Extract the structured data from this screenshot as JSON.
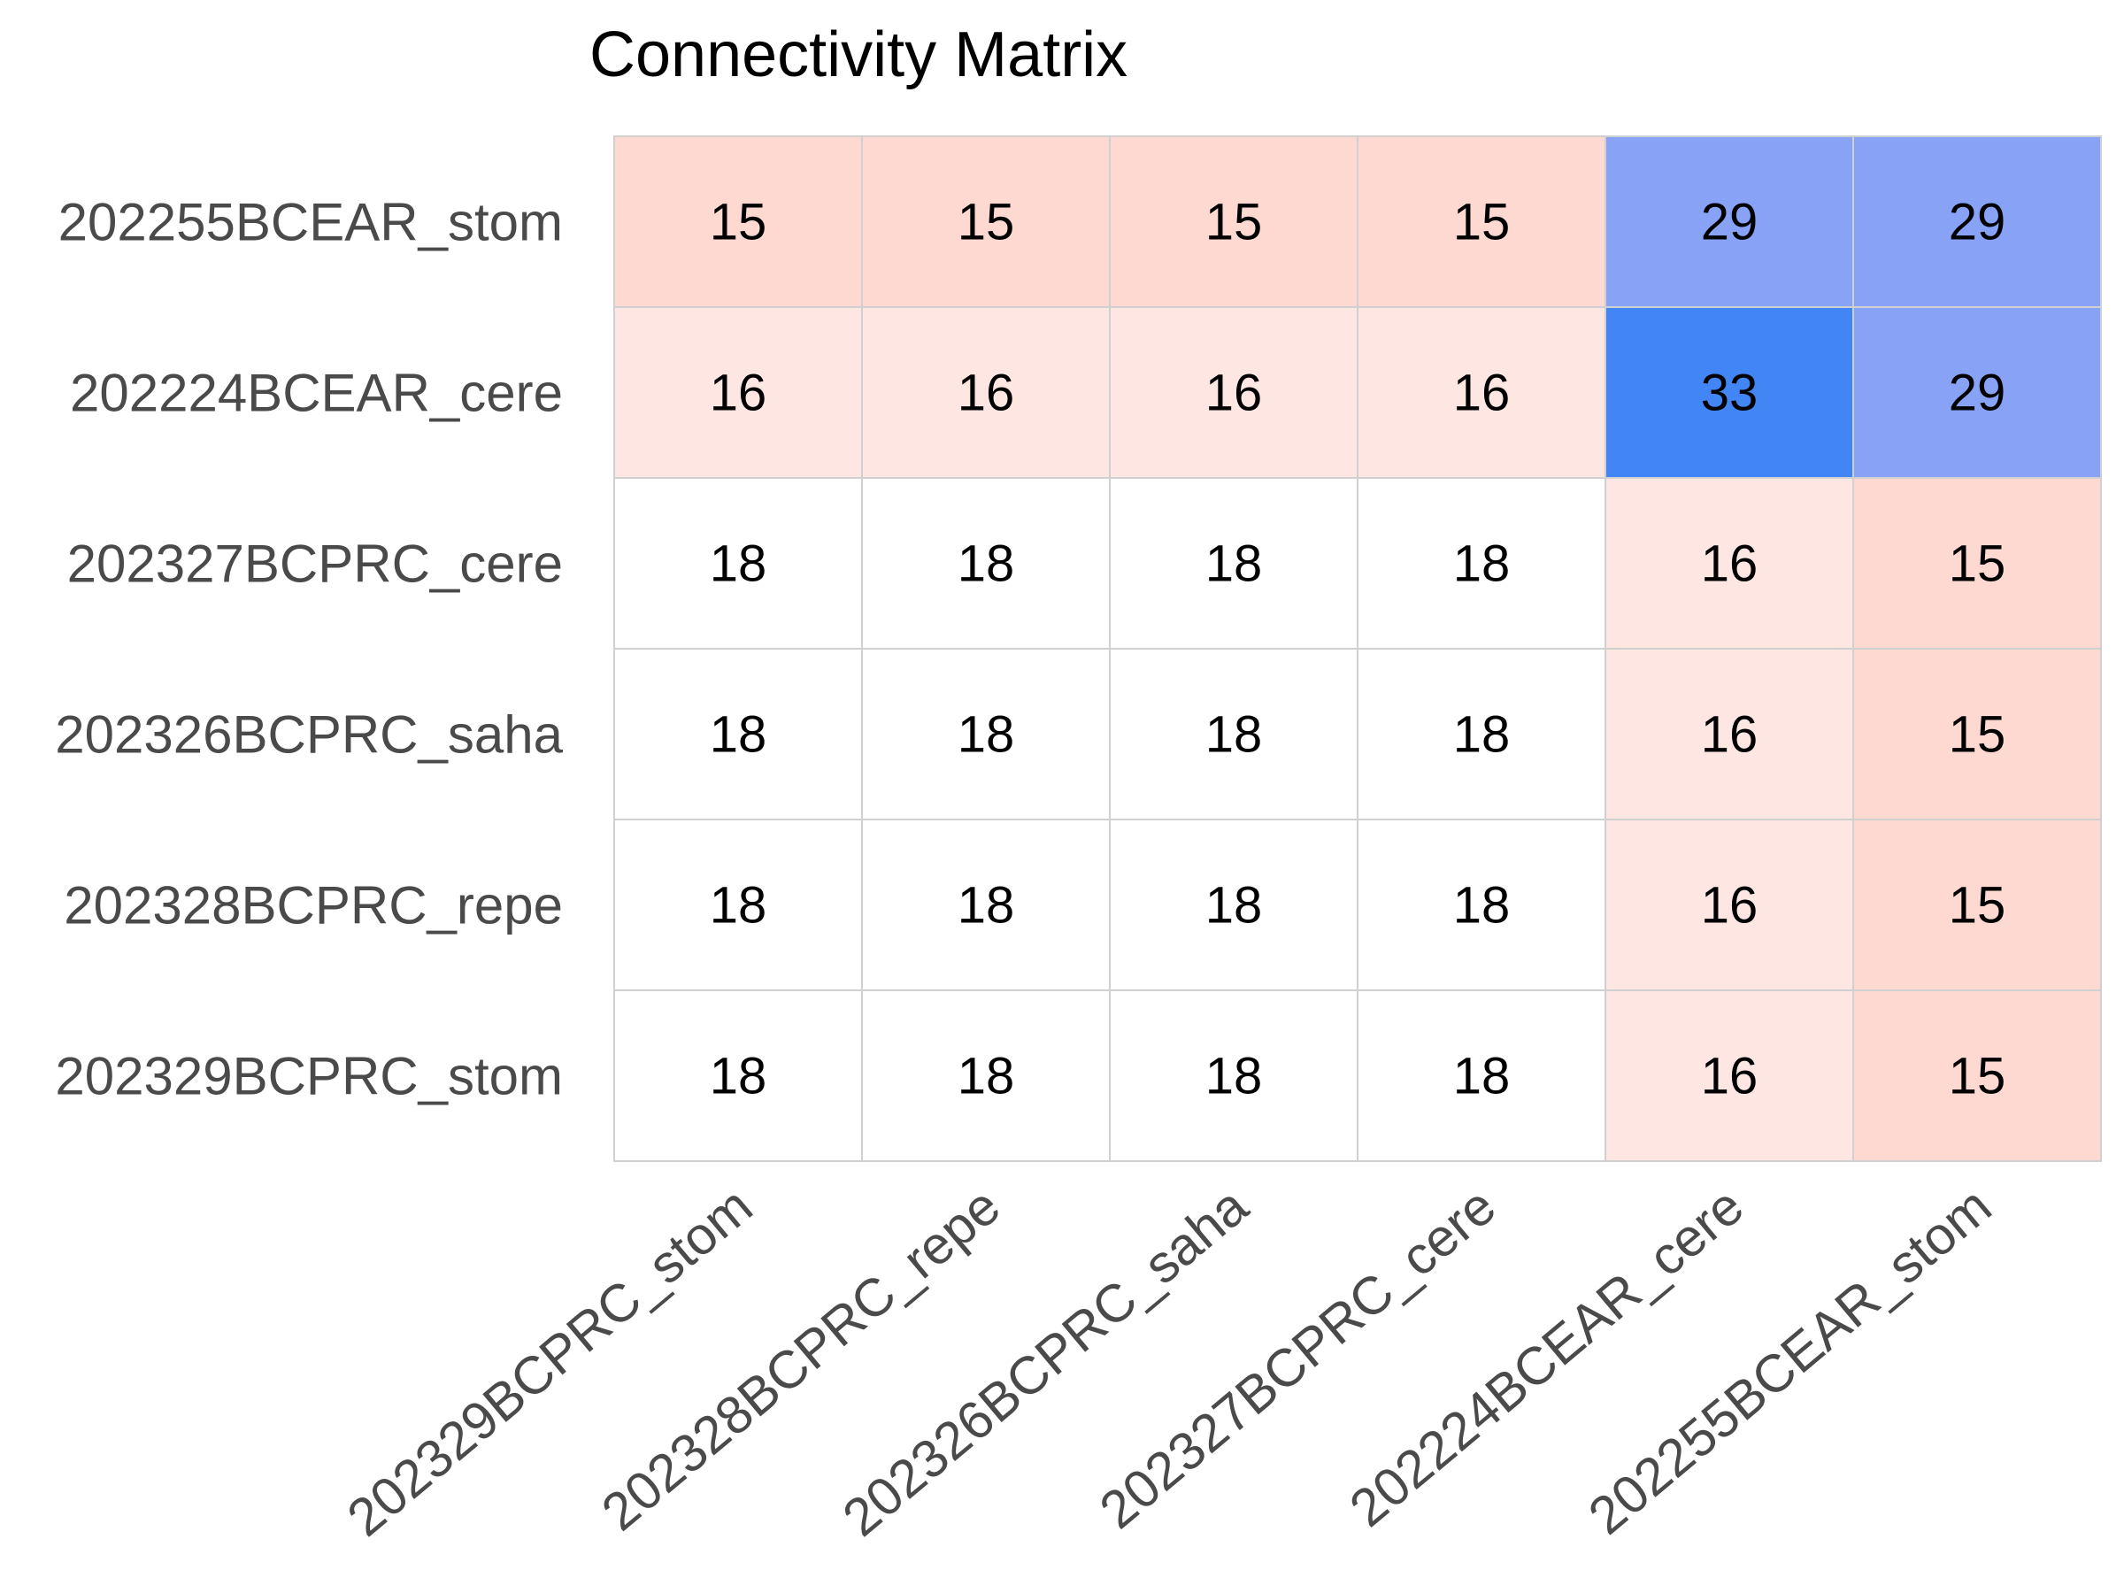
{
  "chart_data": {
    "type": "heatmap",
    "title": "Connectivity Matrix",
    "rows": [
      "202255BCEAR_stom",
      "202224BCEAR_cere",
      "202327BCPRC_cere",
      "202326BCPRC_saha",
      "202328BCPRC_repe",
      "202329BCPRC_stom"
    ],
    "columns": [
      "202329BCPRC_stom",
      "202328BCPRC_repe",
      "202326BCPRC_saha",
      "202327BCPRC_cere",
      "202224BCEAR_cere",
      "202255BCEAR_stom"
    ],
    "values": [
      [
        15,
        15,
        15,
        15,
        29,
        29
      ],
      [
        16,
        16,
        16,
        16,
        33,
        29
      ],
      [
        18,
        18,
        18,
        18,
        16,
        15
      ],
      [
        18,
        18,
        18,
        18,
        16,
        15
      ],
      [
        18,
        18,
        18,
        18,
        16,
        15
      ],
      [
        18,
        18,
        18,
        18,
        16,
        15
      ]
    ],
    "cell_colors": {
      "15": "#fdd9d2",
      "16": "#fee7e2",
      "18": "#ffffff",
      "29": "#88a3f6",
      "33": "#4285f4"
    },
    "annotated": true,
    "grid_color": "#d0d0d0"
  }
}
